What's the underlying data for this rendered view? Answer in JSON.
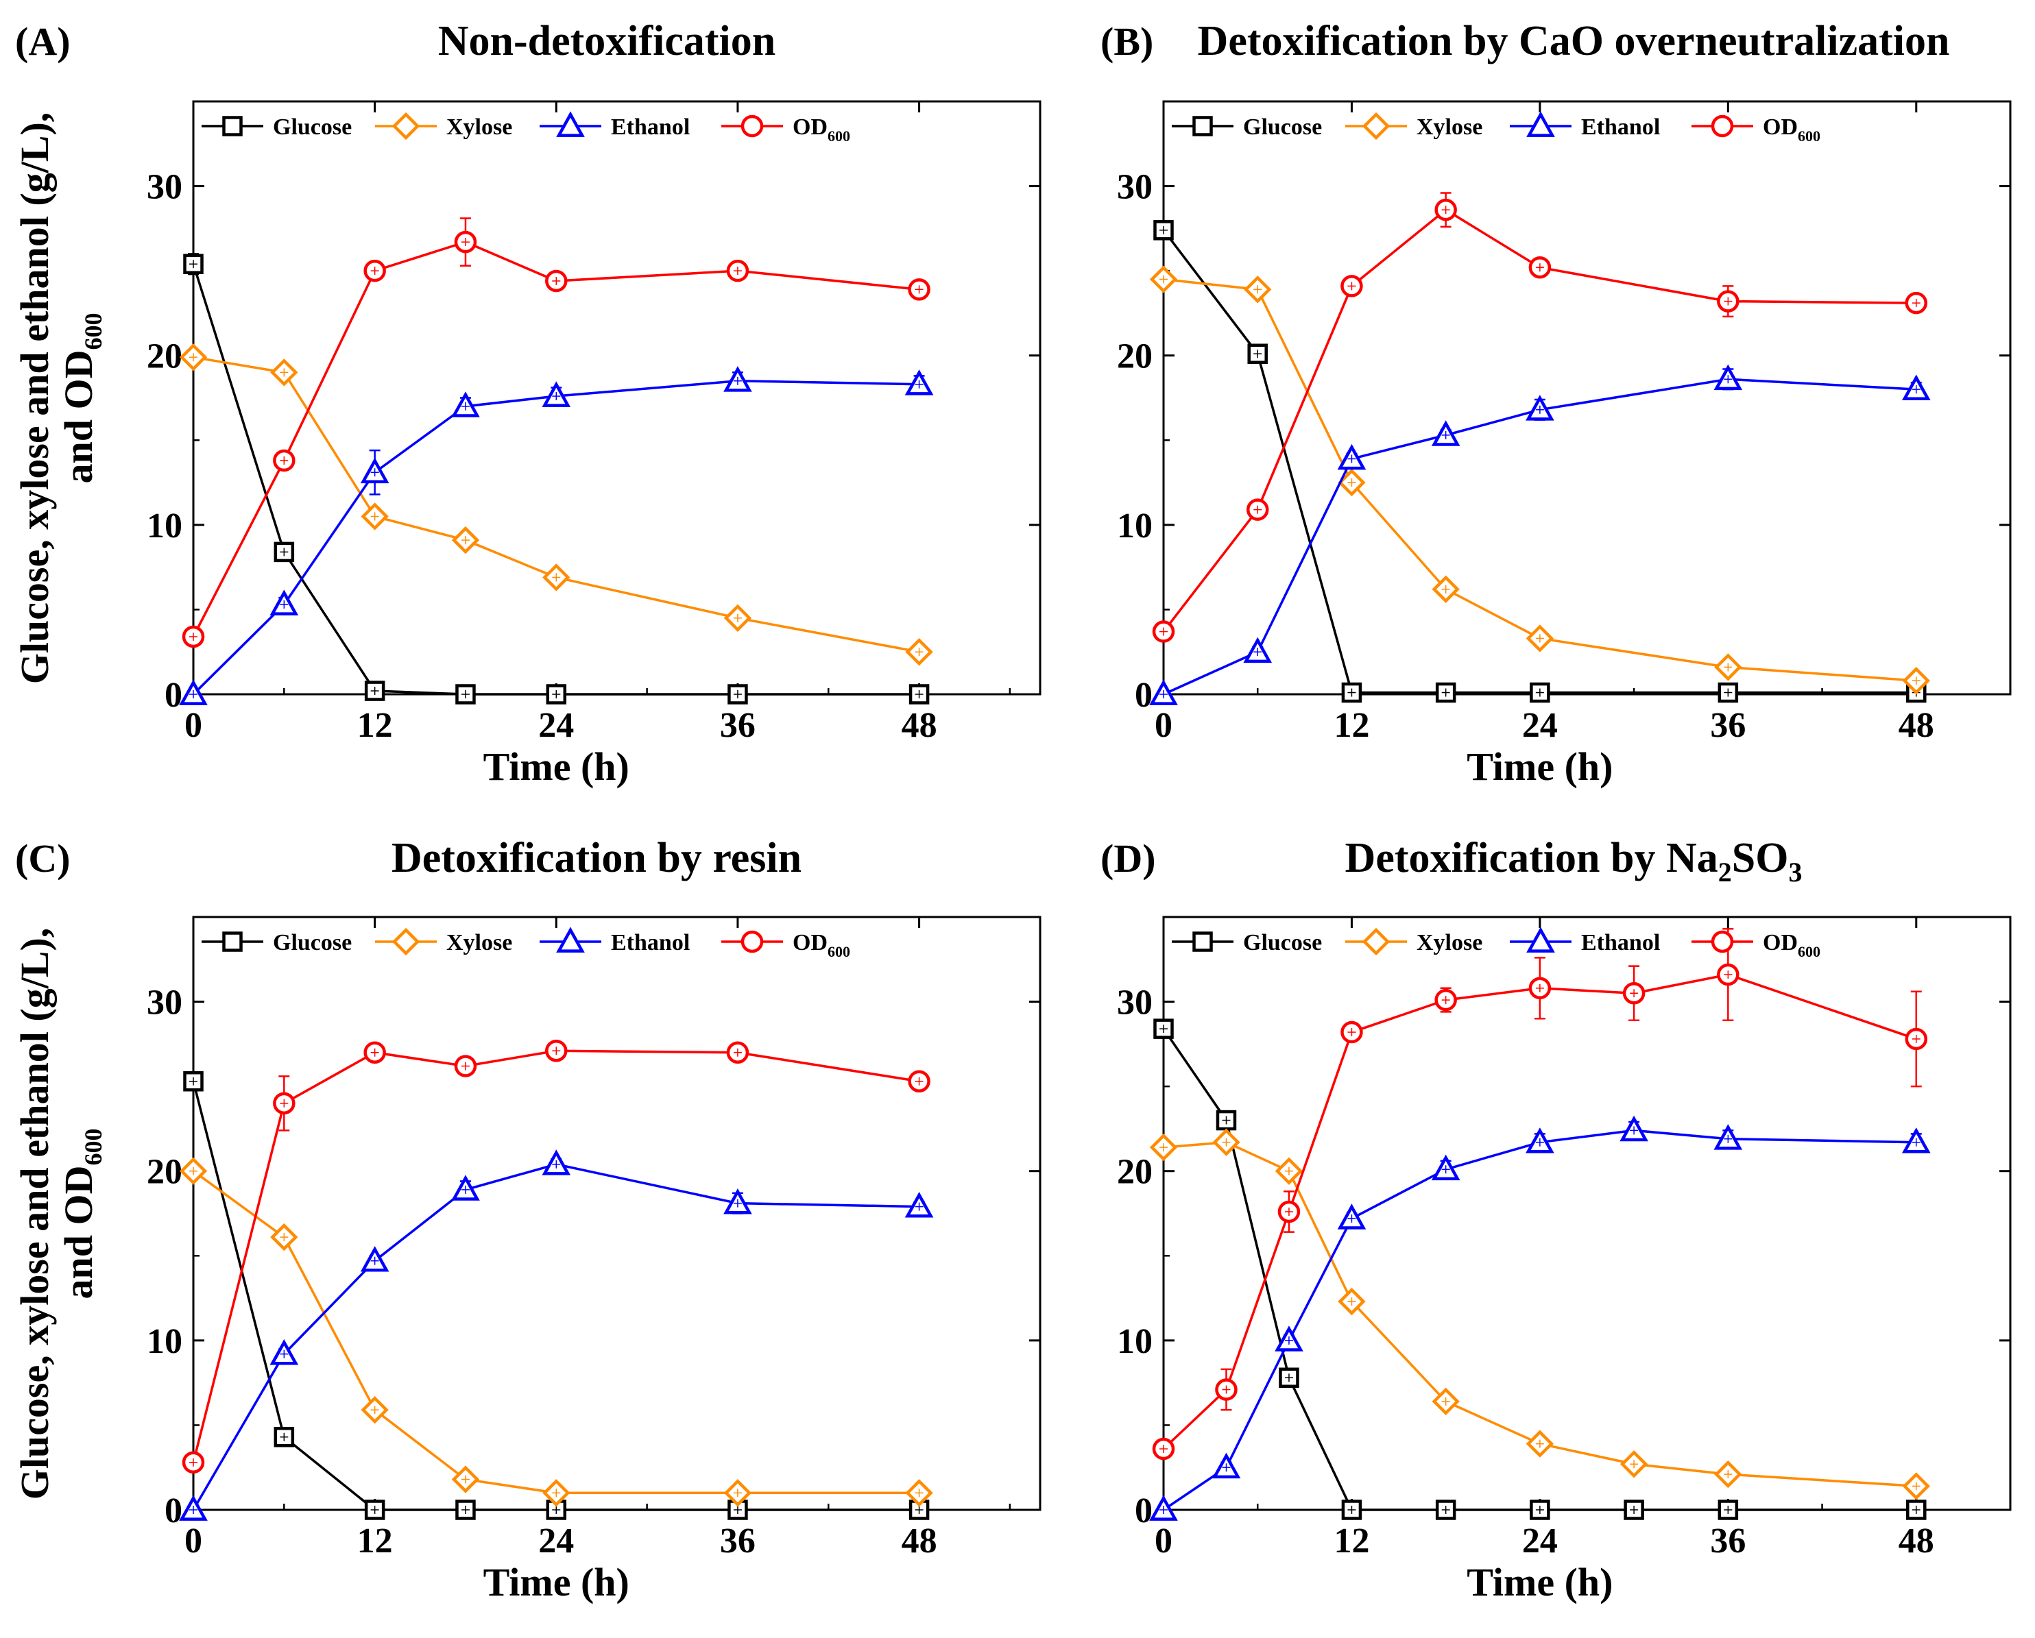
{
  "y_axis_title": {
    "line1": "Glucose, xylose and ethanol (g/L),",
    "line2_prefix": "and OD",
    "line2_sub": "600"
  },
  "x_axis_title": "Time (h)",
  "legend": {
    "glucose": "Glucose",
    "xylose": "Xylose",
    "ethanol": "Ethanol",
    "od_prefix": "OD",
    "od_sub": "600"
  },
  "colors": {
    "glucose": "#000000",
    "xylose": "#ff8c00",
    "ethanol": "#0000ff",
    "od": "#ff0000"
  },
  "chart_data": [
    {
      "type": "line",
      "panel": "(A)",
      "title": "Non-detoxification",
      "title_sub": "",
      "title_suffix": "",
      "xlabel": "Time (h)",
      "ylabel": "Glucose, xylose and ethanol (g/L), and OD600",
      "xlim": [
        0,
        56
      ],
      "ylim": [
        0,
        35
      ],
      "xticks": [
        0,
        12,
        24,
        36,
        48
      ],
      "yticks": [
        0,
        10,
        20,
        30
      ],
      "series": [
        {
          "name": "Glucose",
          "marker": "square",
          "x": [
            0,
            6,
            12,
            18,
            24,
            36,
            48
          ],
          "values": [
            25.4,
            8.4,
            0.2,
            0,
            0,
            0,
            0
          ],
          "err": [
            0.6,
            0.3,
            0,
            0,
            0,
            0,
            0
          ]
        },
        {
          "name": "Xylose",
          "marker": "diamond",
          "x": [
            0,
            6,
            12,
            18,
            24,
            36,
            48
          ],
          "values": [
            19.9,
            19.0,
            10.5,
            9.1,
            6.9,
            4.5,
            2.5
          ],
          "err": [
            0.3,
            0.3,
            0.3,
            0.3,
            0.3,
            0.3,
            0.3
          ]
        },
        {
          "name": "Ethanol",
          "marker": "triangle",
          "x": [
            0,
            6,
            12,
            18,
            24,
            36,
            48
          ],
          "values": [
            0,
            5.3,
            13.1,
            17.0,
            17.6,
            18.5,
            18.3
          ],
          "err": [
            0,
            0.4,
            1.3,
            0.5,
            0.5,
            0.5,
            0.5
          ]
        },
        {
          "name": "OD600",
          "marker": "circle",
          "x": [
            0,
            6,
            12,
            18,
            24,
            36,
            48
          ],
          "values": [
            3.4,
            13.8,
            25.0,
            26.7,
            24.4,
            25.0,
            23.9
          ],
          "err": [
            0,
            0,
            0,
            1.4,
            0,
            0,
            0
          ]
        }
      ]
    },
    {
      "type": "line",
      "panel": "(B)",
      "title": "Detoxification by CaO overneutralization",
      "title_sub": "",
      "title_suffix": "",
      "xlabel": "Time (h)",
      "ylabel": "",
      "xlim": [
        0,
        54
      ],
      "ylim": [
        0,
        35
      ],
      "xticks": [
        0,
        12,
        24,
        36,
        48
      ],
      "yticks": [
        0,
        10,
        20,
        30
      ],
      "series": [
        {
          "name": "Glucose",
          "marker": "square",
          "x": [
            0,
            6,
            12,
            18,
            24,
            36,
            48
          ],
          "values": [
            27.4,
            20.1,
            0.1,
            0.1,
            0.1,
            0.1,
            0.1
          ],
          "err": [
            0.3,
            0.3,
            0,
            0,
            0,
            0,
            0
          ]
        },
        {
          "name": "Xylose",
          "marker": "diamond",
          "x": [
            0,
            6,
            12,
            18,
            24,
            36,
            48
          ],
          "values": [
            24.5,
            23.9,
            12.5,
            6.2,
            3.3,
            1.6,
            0.8
          ],
          "err": [
            0.3,
            0.3,
            0.3,
            0.3,
            0.3,
            0.3,
            0.3
          ]
        },
        {
          "name": "Ethanol",
          "marker": "triangle",
          "x": [
            0,
            6,
            12,
            18,
            24,
            36,
            48
          ],
          "values": [
            0,
            2.5,
            13.9,
            15.3,
            16.8,
            18.6,
            18.0
          ],
          "err": [
            0,
            0.3,
            0.3,
            0.3,
            0.6,
            0.6,
            0.4
          ]
        },
        {
          "name": "OD600",
          "marker": "circle",
          "x": [
            0,
            6,
            12,
            18,
            24,
            36,
            48
          ],
          "values": [
            3.7,
            10.9,
            24.1,
            28.6,
            25.2,
            23.2,
            23.1
          ],
          "err": [
            0,
            0,
            0,
            1.0,
            0,
            0.9,
            0
          ]
        }
      ]
    },
    {
      "type": "line",
      "panel": "(C)",
      "title": "Detoxification by resin",
      "title_sub": "",
      "title_suffix": "",
      "xlabel": "Time (h)",
      "ylabel": "Glucose, xylose and ethanol (g/L), and OD600",
      "xlim": [
        0,
        56
      ],
      "ylim": [
        0,
        35
      ],
      "xticks": [
        0,
        12,
        24,
        36,
        48
      ],
      "yticks": [
        0,
        10,
        20,
        30
      ],
      "series": [
        {
          "name": "Glucose",
          "marker": "square",
          "x": [
            0,
            6,
            12,
            18,
            24,
            36,
            48
          ],
          "values": [
            25.3,
            4.3,
            0,
            0,
            0,
            0,
            0
          ],
          "err": [
            0.3,
            0.3,
            0,
            0,
            0,
            0,
            0
          ]
        },
        {
          "name": "Xylose",
          "marker": "diamond",
          "x": [
            0,
            6,
            12,
            18,
            24,
            36,
            48
          ],
          "values": [
            20.0,
            16.1,
            5.9,
            1.8,
            1.0,
            1.0,
            1.0
          ],
          "err": [
            0.3,
            0.3,
            0.3,
            0.3,
            0.3,
            0.3,
            0.3
          ]
        },
        {
          "name": "Ethanol",
          "marker": "triangle",
          "x": [
            0,
            6,
            12,
            18,
            24,
            36,
            48
          ],
          "values": [
            0,
            9.2,
            14.7,
            18.9,
            20.4,
            18.1,
            17.9
          ],
          "err": [
            0,
            0.3,
            0.3,
            0.5,
            0.3,
            0.6,
            0.3
          ]
        },
        {
          "name": "OD600",
          "marker": "circle",
          "x": [
            0,
            6,
            12,
            18,
            24,
            36,
            48
          ],
          "values": [
            2.8,
            24.0,
            27.0,
            26.2,
            27.1,
            27.0,
            25.3
          ],
          "err": [
            0,
            1.6,
            0,
            0,
            0,
            0,
            0
          ]
        }
      ]
    },
    {
      "type": "line",
      "panel": "(D)",
      "title": "Detoxification by Na",
      "title_sub": "2",
      "title_suffix": "SO",
      "title_sub2": "3",
      "xlabel": "Time (h)",
      "ylabel": "",
      "xlim": [
        0,
        54
      ],
      "ylim": [
        0,
        35
      ],
      "xticks": [
        0,
        12,
        24,
        36,
        48
      ],
      "yticks": [
        0,
        10,
        20,
        30
      ],
      "series": [
        {
          "name": "Glucose",
          "marker": "square",
          "x": [
            0,
            4,
            8,
            12,
            18,
            24,
            30,
            36,
            48
          ],
          "values": [
            28.4,
            23.0,
            7.8,
            0,
            0,
            0,
            0,
            0,
            0
          ],
          "err": [
            0.4,
            0.4,
            0.4,
            0,
            0,
            0,
            0,
            0,
            0
          ]
        },
        {
          "name": "Xylose",
          "marker": "diamond",
          "x": [
            0,
            4,
            8,
            12,
            18,
            24,
            30,
            36,
            48
          ],
          "values": [
            21.4,
            21.7,
            20.0,
            12.3,
            6.4,
            3.9,
            2.7,
            2.1,
            1.4
          ],
          "err": [
            0.3,
            0.3,
            0.3,
            0.3,
            0.3,
            0.3,
            0.3,
            0.3,
            0.3
          ]
        },
        {
          "name": "Ethanol",
          "marker": "triangle",
          "x": [
            0,
            4,
            8,
            12,
            18,
            24,
            30,
            36,
            48
          ],
          "values": [
            0,
            2.5,
            10.0,
            17.2,
            20.1,
            21.7,
            22.4,
            21.9,
            21.7
          ],
          "err": [
            0,
            0.3,
            0.3,
            0.3,
            0.5,
            0.5,
            0.5,
            0.5,
            0.5
          ]
        },
        {
          "name": "OD600",
          "marker": "circle",
          "x": [
            0,
            4,
            8,
            12,
            18,
            24,
            30,
            36,
            48
          ],
          "values": [
            3.6,
            7.1,
            17.6,
            28.2,
            30.1,
            30.8,
            30.5,
            31.6,
            27.8
          ],
          "err": [
            0,
            1.2,
            1.2,
            0,
            0.7,
            1.8,
            1.6,
            2.7,
            2.8
          ]
        }
      ]
    }
  ]
}
